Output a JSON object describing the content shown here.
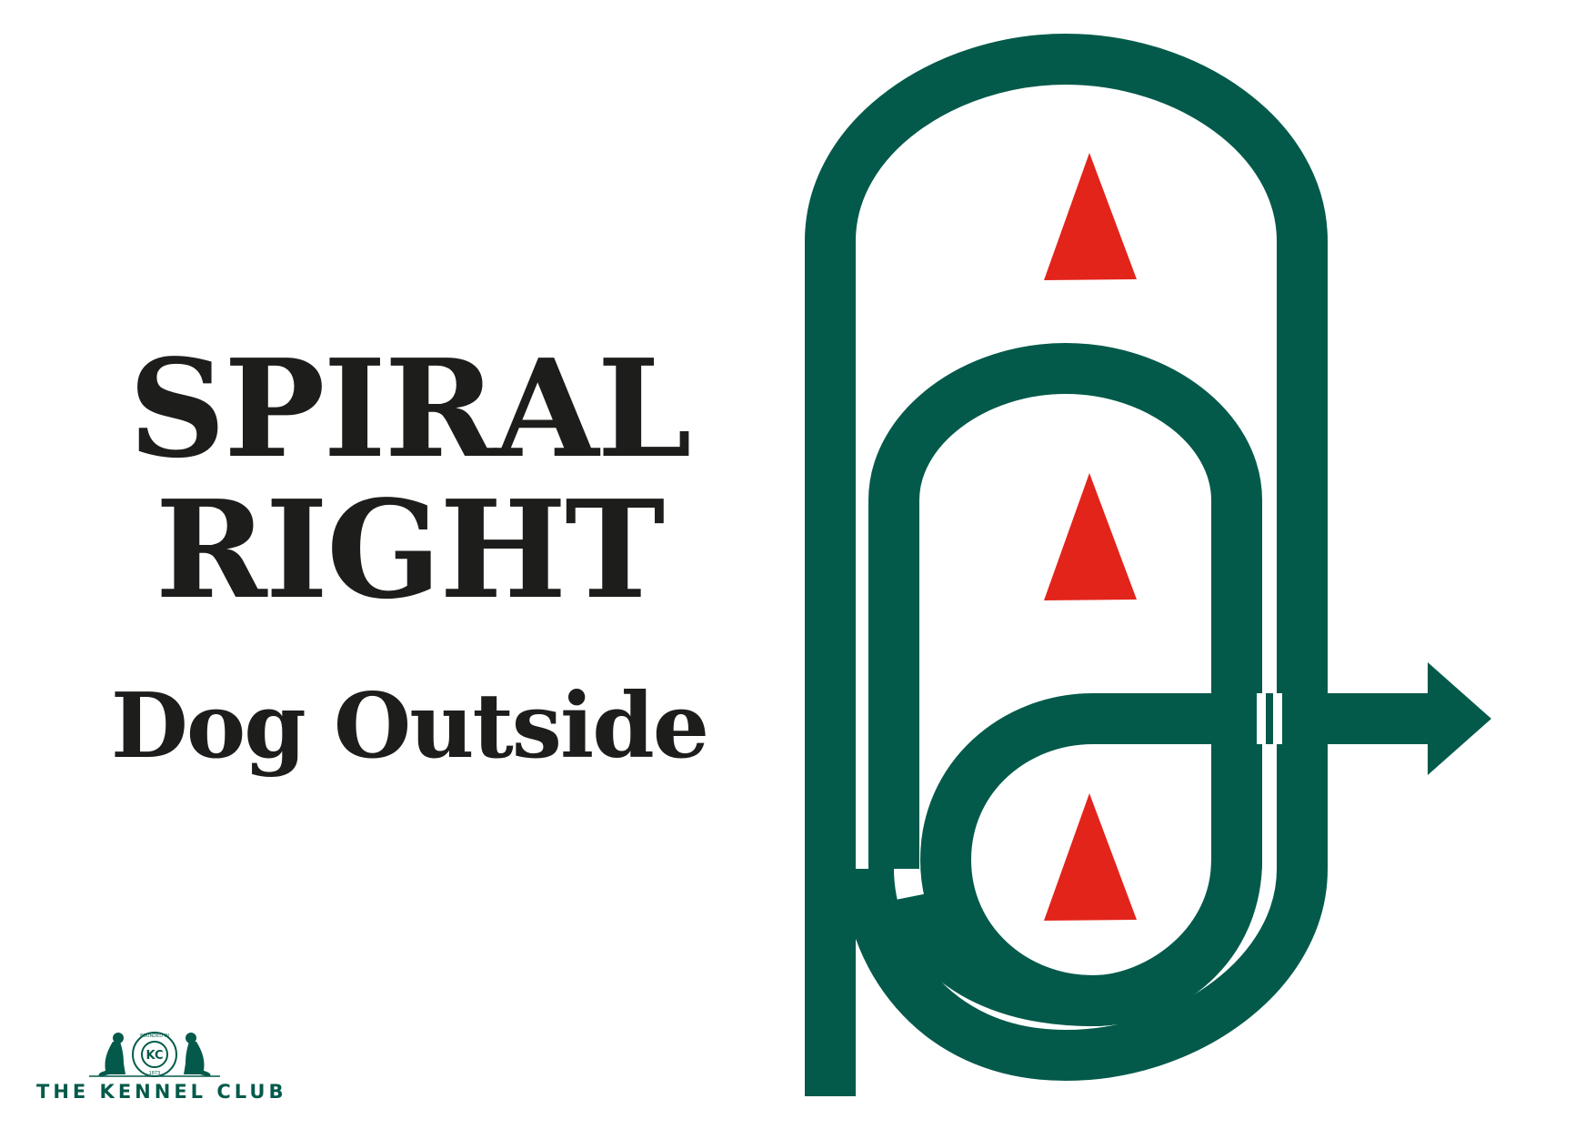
{
  "title": {
    "line1": "SPIRAL",
    "line2": "RIGHT"
  },
  "subtitle": "Dog Outside",
  "logo": {
    "name": "THE KENNEL CLUB",
    "badge_initials": "KC",
    "badge_ring_text": "FOUNDED IN",
    "badge_year": "1873"
  },
  "colors": {
    "track": "#035a4a",
    "cone": "#e3241b",
    "text": "#1d1d1b",
    "background": "#ffffff"
  },
  "icons": {
    "cones": [
      "cone-icon",
      "cone-icon",
      "cone-icon"
    ],
    "exit_arrow": "arrow-right-icon",
    "logo_dogs": "dog-icon"
  }
}
